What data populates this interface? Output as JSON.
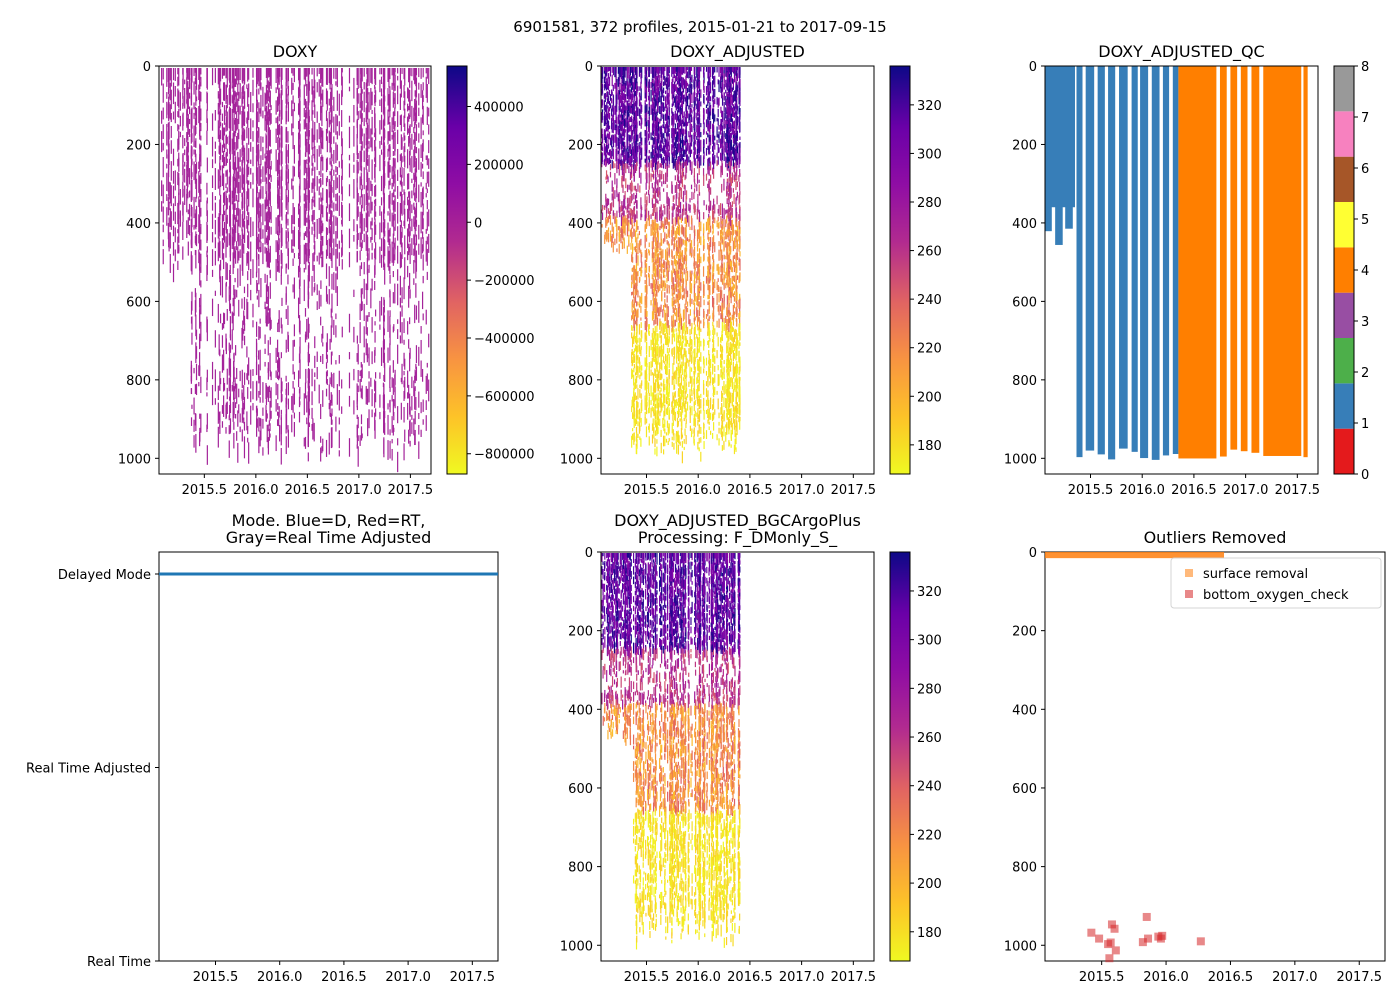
{
  "figure": {
    "suptitle": "6901581, 372 profiles, 2015-01-21 to 2017-09-15"
  },
  "chart_data": [
    {
      "type": "heatmap",
      "title": "DOXY",
      "x_range": [
        2015.06,
        2017.7
      ],
      "y_range": [
        1040,
        0
      ],
      "x_ticks": [
        2015.5,
        2016.0,
        2016.5,
        2017.0,
        2017.5
      ],
      "x_tick_labels": [
        "2015.5",
        "2016.0",
        "2016.5",
        "2017.0",
        "2017.5"
      ],
      "y_ticks": [
        0,
        200,
        400,
        600,
        800,
        1000
      ],
      "y_tick_labels": [
        "0",
        "200",
        "400",
        "600",
        "800",
        "1000"
      ],
      "colormap": "plasma_r",
      "colorbar": {
        "range": [
          -870000,
          540000
        ],
        "ticks": [
          400000,
          200000,
          0,
          -200000,
          -400000,
          -600000,
          -800000
        ],
        "tick_labels": [
          "400000",
          "200000",
          "0",
          "−200000",
          "−400000",
          "−600000",
          "−800000"
        ]
      },
      "description_value": "typical values near 0 (purple)"
    },
    {
      "type": "heatmap",
      "title": "DOXY_ADJUSTED",
      "x_range": [
        2015.06,
        2017.7
      ],
      "y_range": [
        1040,
        0
      ],
      "x_ticks": [
        2015.5,
        2016.0,
        2016.5,
        2017.0,
        2017.5
      ],
      "x_tick_labels": [
        "2015.5",
        "2016.0",
        "2016.5",
        "2017.0",
        "2017.5"
      ],
      "y_ticks": [
        0,
        200,
        400,
        600,
        800,
        1000
      ],
      "y_tick_labels": [
        "0",
        "200",
        "400",
        "600",
        "800",
        "1000"
      ],
      "colormap": "plasma_r",
      "colorbar": {
        "range": [
          168,
          336
        ],
        "ticks": [
          320,
          300,
          280,
          260,
          240,
          220,
          200,
          180
        ],
        "tick_labels": [
          "320",
          "300",
          "280",
          "260",
          "240",
          "220",
          "200",
          "180"
        ]
      }
    },
    {
      "type": "heatmap",
      "title": "DOXY_ADJUSTED_QC",
      "x_range": [
        2015.06,
        2017.7
      ],
      "y_range": [
        1040,
        0
      ],
      "x_ticks": [
        2015.5,
        2016.0,
        2016.5,
        2017.0,
        2017.5
      ],
      "x_tick_labels": [
        "2015.5",
        "2016.0",
        "2016.5",
        "2017.0",
        "2017.5"
      ],
      "y_ticks": [
        0,
        200,
        400,
        600,
        800,
        1000
      ],
      "y_tick_labels": [
        "0",
        "200",
        "400",
        "600",
        "800",
        "1000"
      ],
      "colorbar": {
        "range": [
          0,
          8
        ],
        "ticks": [
          0,
          1,
          2,
          3,
          4,
          5,
          6,
          7,
          8
        ],
        "tick_labels": [
          "0",
          "1",
          "2",
          "3",
          "4",
          "5",
          "6",
          "7",
          "8"
        ],
        "bins": [
          "#e41a1c",
          "#377eb8",
          "#4daf4a",
          "#984ea3",
          "#ff7f00",
          "#ffff33",
          "#a65628",
          "#f781bf",
          "#999999"
        ]
      },
      "segments": [
        {
          "qc": 1,
          "x_start": 2015.06,
          "x_end": 2016.35
        },
        {
          "qc": 4,
          "x_start": 2016.35,
          "x_end": 2017.6
        }
      ]
    },
    {
      "type": "line",
      "title": "Mode. Blue=D, Red=RT,\nGray=Real Time Adjusted",
      "title_lines": [
        "Mode. Blue=D, Red=RT,",
        "Gray=Real Time Adjusted"
      ],
      "x_range": [
        2015.06,
        2017.7
      ],
      "x_ticks": [
        2015.5,
        2016.0,
        2016.5,
        2017.0,
        2017.5
      ],
      "x_tick_labels": [
        "2015.5",
        "2016.0",
        "2016.5",
        "2017.0",
        "2017.5"
      ],
      "y_categories": [
        "Delayed Mode",
        "Real Time Adjusted",
        "Real Time"
      ],
      "series": [
        {
          "name": "Delayed Mode",
          "x": [
            2015.06,
            2017.7
          ],
          "y": [
            "Delayed Mode",
            "Delayed Mode"
          ],
          "color": "#1f77b4"
        }
      ]
    },
    {
      "type": "heatmap",
      "title": "DOXY_ADJUSTED_BGCArgoPlus\nProcessing: F_DMonly_S_",
      "title_lines": [
        "DOXY_ADJUSTED_BGCArgoPlus",
        "Processing: F_DMonly_S_"
      ],
      "x_range": [
        2015.06,
        2017.7
      ],
      "y_range": [
        1040,
        0
      ],
      "x_ticks": [
        2015.5,
        2016.0,
        2016.5,
        2017.0,
        2017.5
      ],
      "x_tick_labels": [
        "2015.5",
        "2016.0",
        "2016.5",
        "2017.0",
        "2017.5"
      ],
      "y_ticks": [
        0,
        200,
        400,
        600,
        800,
        1000
      ],
      "y_tick_labels": [
        "0",
        "200",
        "400",
        "600",
        "800",
        "1000"
      ],
      "colormap": "plasma_r",
      "colorbar": {
        "range": [
          168,
          336
        ],
        "ticks": [
          320,
          300,
          280,
          260,
          240,
          220,
          200,
          180
        ],
        "tick_labels": [
          "320",
          "300",
          "280",
          "260",
          "240",
          "220",
          "200",
          "180"
        ]
      }
    },
    {
      "type": "scatter",
      "title": "Outliers Removed",
      "x_range": [
        2015.06,
        2017.7
      ],
      "y_range": [
        1040,
        0
      ],
      "x_ticks": [
        2015.5,
        2016.0,
        2016.5,
        2017.0,
        2017.5
      ],
      "x_tick_labels": [
        "2015.5",
        "2016.0",
        "2016.5",
        "2017.0",
        "2017.5"
      ],
      "y_ticks": [
        0,
        200,
        400,
        600,
        800,
        1000
      ],
      "y_tick_labels": [
        "0",
        "200",
        "400",
        "600",
        "800",
        "1000"
      ],
      "legend": [
        "surface removal",
        "bottom_oxygen_check"
      ],
      "legend_loc": "upper right",
      "series": [
        {
          "name": "surface removal",
          "color": "#ff7f0e",
          "marker": "square",
          "y_depth": [
            0,
            8
          ],
          "x_start": 2015.06,
          "x_end": 2016.45
        },
        {
          "name": "bottom_oxygen_check",
          "color": "#d62728",
          "marker": "square",
          "points": [
            [
              2015.42,
              968
            ],
            [
              2015.48,
              983
            ],
            [
              2015.55,
              997
            ],
            [
              2015.57,
              993
            ],
            [
              2015.58,
              947
            ],
            [
              2015.6,
              958
            ],
            [
              2015.61,
              1013
            ],
            [
              2015.56,
              1033
            ],
            [
              2015.82,
              992
            ],
            [
              2015.86,
              983
            ],
            [
              2015.85,
              928
            ],
            [
              2015.94,
              978
            ],
            [
              2015.96,
              983
            ],
            [
              2015.97,
              976
            ],
            [
              2016.27,
              990
            ]
          ]
        }
      ]
    }
  ]
}
